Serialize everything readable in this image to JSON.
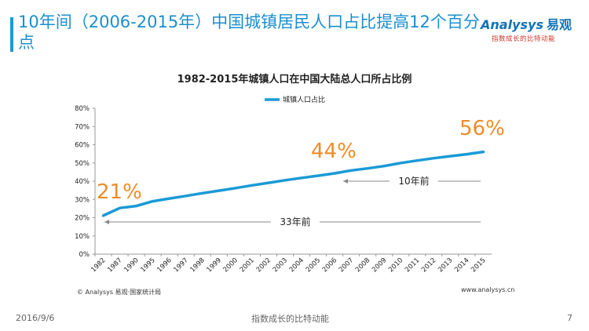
{
  "slide": {
    "title": "10年间（2006-2015年）中国城镇居民人口占比提高12个百分点",
    "brand_name": "Analysys",
    "brand_cn": "易观",
    "brand_tagline": "指数成长的比特动能",
    "source": "© Analysys 易观·国家统计局",
    "website": "www.analysys.cn",
    "footer_date": "2016/9/6",
    "footer_slogan": "指数成长的比特动能",
    "page_number": "7"
  },
  "chart_data": {
    "type": "line",
    "title": "1982-2015年城镇人口在中国大陆总人口所占比例",
    "x": [
      "1982",
      "1987",
      "1990",
      "1995",
      "1996",
      "1997",
      "1998",
      "1999",
      "2000",
      "2001",
      "2002",
      "2003",
      "2004",
      "2005",
      "2006",
      "2007",
      "2008",
      "2009",
      "2010",
      "2011",
      "2012",
      "2013",
      "2014",
      "2015"
    ],
    "series": [
      {
        "name": "城镇人口占比",
        "values": [
          21.1,
          25.3,
          26.4,
          29.0,
          30.5,
          31.9,
          33.4,
          34.8,
          36.2,
          37.7,
          39.1,
          40.5,
          41.8,
          43.0,
          44.3,
          45.9,
          47.0,
          48.3,
          50.0,
          51.3,
          52.6,
          53.7,
          54.8,
          56.1
        ]
      }
    ],
    "ylim": [
      0,
      80
    ],
    "yticks": [
      "0%",
      "10%",
      "20%",
      "30%",
      "40%",
      "50%",
      "60%",
      "70%",
      "80%"
    ],
    "legend_position": "top",
    "grid": false,
    "line_color": "#1a9ad6",
    "highlight_color": "#f08c28",
    "annotations": {
      "start_label": "21%",
      "mid_label": "44%",
      "end_label": "56%",
      "span_10y": "10年前",
      "span_33y": "33年前"
    }
  }
}
